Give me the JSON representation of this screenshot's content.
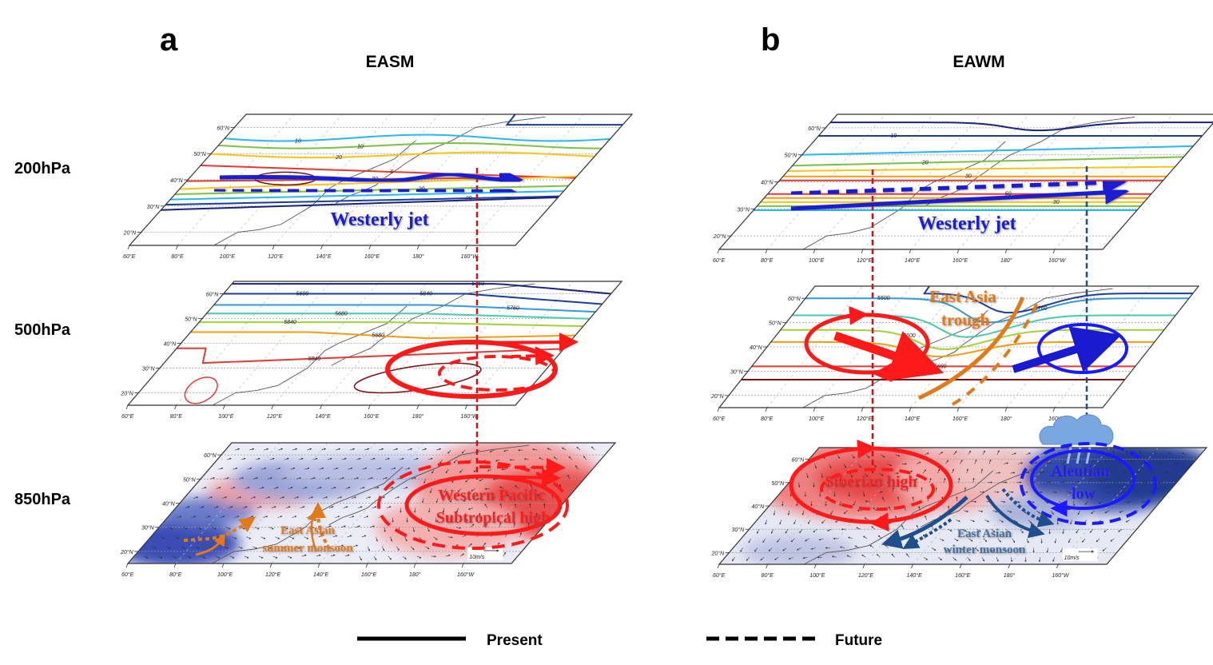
{
  "panels": [
    {
      "letter": "a",
      "title": "EASM"
    },
    {
      "letter": "b",
      "title": "EAWM"
    }
  ],
  "levels": [
    "200hPa",
    "500hPa",
    "850hPa"
  ],
  "axes": {
    "lon": [
      "60°E",
      "80°E",
      "100°E",
      "120°E",
      "140°E",
      "160°E",
      "180°",
      "160°W"
    ],
    "lat": [
      "20°N",
      "30°N",
      "40°N",
      "50°N",
      "60°N"
    ]
  },
  "contour_labels": {
    "a_200": [
      "10",
      "20",
      "30",
      "20",
      "20",
      "10",
      "10",
      "0"
    ],
    "a_500": [
      "5600",
      "5680",
      "5680",
      "5760",
      "5760",
      "5840",
      "5840",
      "5840"
    ],
    "b_200": [
      "10",
      "20",
      "30",
      "50",
      "30"
    ],
    "b_500": [
      "5500",
      "5600",
      "5680",
      "5760"
    ]
  },
  "annotations": {
    "westerly_jet": "Westerly jet",
    "wpsh_line1": "Western Pacific",
    "wpsh_line2": "Subtropical high",
    "easm_line1": "East Asian",
    "easm_line2": "summer monsoon",
    "trough_line1": "East Asia",
    "trough_line2": "trough",
    "siberian_high": "Siberian high",
    "aleutian_line1": "Aleutian",
    "aleutian_line2": "low",
    "eawm_line1": "East Asian",
    "eawm_line2": "winter monsoon"
  },
  "wind_scale": "10m/s",
  "legend": {
    "present": "Present",
    "future": "Future"
  },
  "colors": {
    "jet": "#1a1ad0",
    "high": "#ff1a1a",
    "low": "#1a1aff",
    "monsoon_summer": "#e07a1a",
    "monsoon_winter": "#1f4e8c",
    "trough": "#e07a1a",
    "cloud": "#7aa7e0"
  }
}
